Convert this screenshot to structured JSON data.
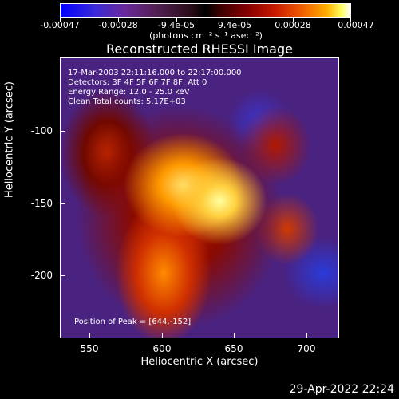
{
  "colorbar": {
    "tick_labels": [
      "-0.00047",
      "-0.00028",
      "-9.4e-05",
      "9.4e-05",
      "0.00028",
      "0.00047"
    ],
    "unit_label": "(photons cm⁻² s⁻¹ asec⁻²)"
  },
  "title": "Reconstructed RHESSI Image",
  "info": {
    "time_range": "17-Mar-2003 22:11:16.000 to 22:17:00.000",
    "detectors": "Detectors: 3F 4F 5F 6F 7F 8F, Att 0",
    "energy": "Energy Range: 12.0 - 25.0 keV",
    "method": "Clean     Total counts: 5.17E+03",
    "peak": "Position of Peak = [644,-152]"
  },
  "axes": {
    "xlabel": "Heliocentric X (arcsec)",
    "ylabel": "Heliocentric Y (arcsec)",
    "xticks": [
      "550",
      "600",
      "650",
      "700"
    ],
    "yticks": [
      "-100",
      "-150",
      "-200"
    ]
  },
  "footer": {
    "timestamp": "29-Apr-2022 22:24"
  }
}
